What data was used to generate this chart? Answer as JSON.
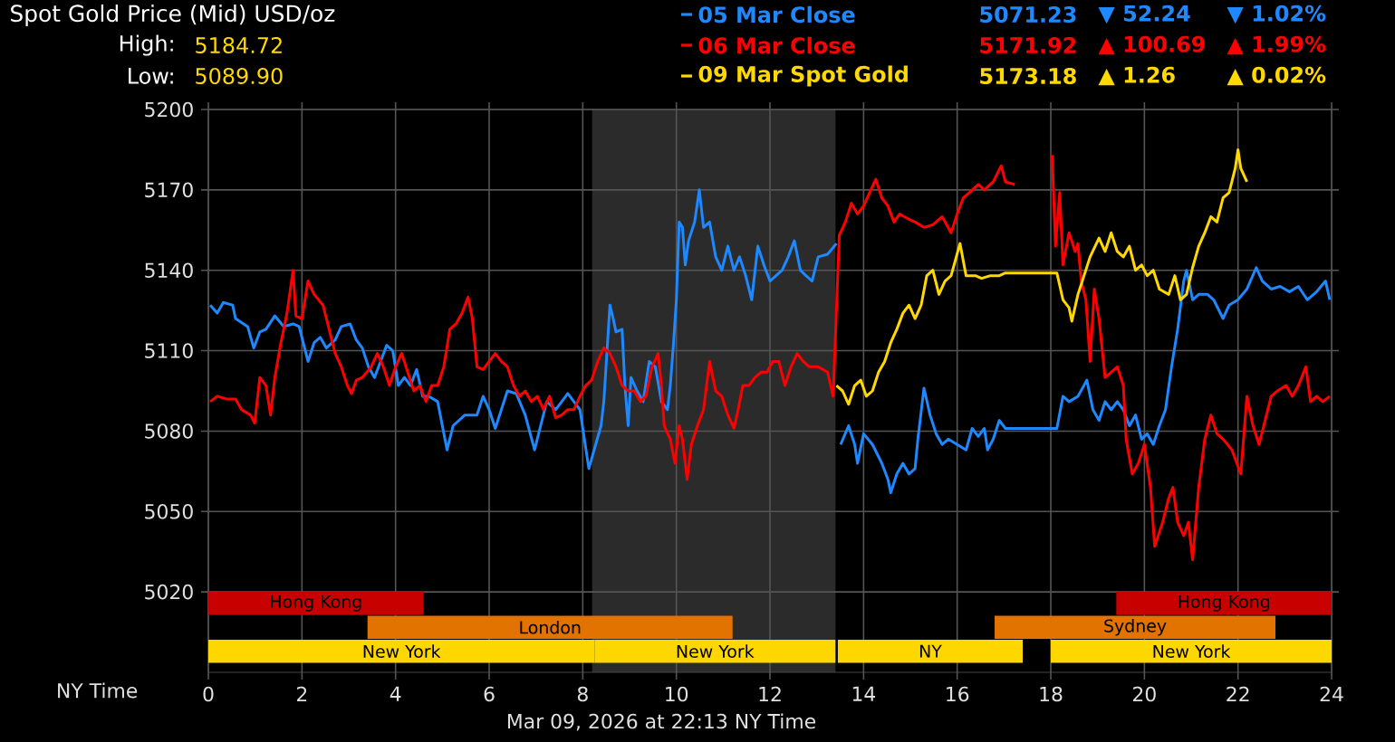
{
  "chart_data": {
    "type": "line",
    "title": "Spot Gold Price (Mid) USD/oz",
    "xlabel": "NY Time",
    "xlim": [
      0,
      24
    ],
    "ylim": [
      4990,
      5200
    ],
    "xticks": [
      0,
      2,
      4,
      6,
      8,
      10,
      12,
      14,
      16,
      18,
      20,
      22,
      24
    ],
    "yticks": [
      5020,
      5050,
      5080,
      5110,
      5140,
      5170,
      5200
    ],
    "grid": true,
    "legend": "top right",
    "series": [
      {
        "name": "05 Mar Close",
        "color": "#1e88ff",
        "x": [
          0.04,
          0.19,
          0.32,
          0.52,
          0.58,
          0.84,
          0.97,
          1.1,
          1.23,
          1.42,
          1.61,
          1.81,
          1.94,
          2.13,
          2.26,
          2.39,
          2.52,
          2.71,
          2.84,
          3.03,
          3.16,
          3.29,
          3.42,
          3.55,
          3.68,
          3.81,
          3.94,
          4.06,
          4.19,
          4.32,
          4.45,
          4.58,
          4.71,
          4.9,
          5.1,
          5.23,
          5.48,
          5.74,
          5.87,
          6.0,
          6.13,
          6.26,
          6.39,
          6.58,
          6.77,
          6.97,
          7.1,
          7.23,
          7.42,
          7.55,
          7.68,
          7.81,
          7.94,
          8.13,
          8.26,
          8.39,
          8.45,
          8.58,
          8.65,
          8.71,
          8.84,
          8.9,
          8.97,
          9.03,
          9.16,
          9.29,
          9.42,
          9.55,
          9.68,
          9.81,
          9.87,
          9.94,
          10.0,
          10.06,
          10.13,
          10.19,
          10.26,
          10.39,
          10.49,
          10.58,
          10.71,
          10.84,
          10.97,
          11.1,
          11.23,
          11.35,
          11.48,
          11.61,
          11.74,
          11.87,
          12.0,
          12.13,
          12.26,
          12.39,
          12.52,
          12.65,
          12.77,
          12.9,
          13.03,
          13.23,
          13.42,
          13.46,
          13.51,
          13.68,
          13.81,
          13.87,
          14.0,
          14.19,
          14.39,
          14.52,
          14.58,
          14.71,
          14.84,
          14.97,
          15.1,
          15.16,
          15.29,
          15.42,
          15.55,
          15.68,
          15.81,
          16.0,
          16.19,
          16.32,
          16.45,
          16.58,
          16.65,
          16.77,
          16.9,
          17.03,
          18.13,
          18.26,
          18.39,
          18.58,
          18.77,
          18.9,
          19.03,
          19.16,
          19.29,
          19.42,
          19.55,
          19.68,
          19.81,
          19.94,
          20.06,
          20.19,
          20.32,
          20.45,
          20.58,
          20.71,
          20.84,
          20.9,
          21.03,
          21.16,
          21.35,
          21.48,
          21.68,
          21.81,
          22.0,
          22.19,
          22.39,
          22.52,
          22.71,
          22.9,
          23.1,
          23.29,
          23.48,
          23.68,
          23.87,
          23.96
        ],
        "values": [
          5127,
          5124,
          5128,
          5127,
          5122,
          5119,
          5111,
          5117,
          5118,
          5123,
          5119,
          5120,
          5119,
          5106,
          5113,
          5115,
          5111,
          5114,
          5119,
          5120,
          5114,
          5111,
          5104,
          5100,
          5106,
          5112,
          5110,
          5097,
          5100,
          5097,
          5103,
          5093,
          5093,
          5091,
          5073,
          5082,
          5086,
          5086,
          5093,
          5088,
          5081,
          5088,
          5095,
          5094,
          5086,
          5073,
          5082,
          5091,
          5088,
          5091,
          5094,
          5091,
          5088,
          5066,
          5074,
          5082,
          5091,
          5127,
          5122,
          5117,
          5118,
          5097,
          5082,
          5100,
          5095,
          5091,
          5106,
          5104,
          5091,
          5088,
          5097,
          5113,
          5129,
          5158,
          5156,
          5142,
          5151,
          5158,
          5170,
          5156,
          5158,
          5145,
          5140,
          5149,
          5140,
          5145,
          5138,
          5129,
          5149,
          5142,
          5136,
          5138,
          5140,
          5145,
          5151,
          5140,
          5138,
          5136,
          5145,
          5146,
          5150,
          null,
          5075,
          5082,
          5075,
          5068,
          5079,
          5075,
          5068,
          5062,
          5057,
          5064,
          5068,
          5064,
          5066,
          5077,
          5096,
          5086,
          5079,
          5075,
          5077,
          5075,
          5073,
          5081,
          5078,
          5081,
          5073,
          5077,
          5084,
          5081,
          5081,
          5093,
          5091,
          5093,
          5099,
          5088,
          5084,
          5091,
          5088,
          5091,
          5088,
          5082,
          5086,
          5077,
          5079,
          5075,
          5082,
          5088,
          5104,
          5118,
          5136,
          5140,
          5129,
          5131,
          5131,
          5129,
          5122,
          5127,
          5129,
          5133,
          5141,
          5136,
          5133,
          5134,
          5132,
          5134,
          5129,
          5132,
          5136,
          5129
        ]
      },
      {
        "name": "06 Mar Close",
        "color": "#ff0000",
        "x": [
          0.04,
          0.19,
          0.39,
          0.58,
          0.71,
          0.9,
          0.99,
          1.1,
          1.23,
          1.33,
          1.42,
          1.55,
          1.68,
          1.81,
          1.87,
          2.0,
          2.13,
          2.26,
          2.45,
          2.58,
          2.71,
          2.84,
          2.97,
          3.06,
          3.16,
          3.29,
          3.48,
          3.61,
          3.74,
          3.87,
          4.0,
          4.13,
          4.26,
          4.39,
          4.52,
          4.65,
          4.77,
          4.9,
          5.03,
          5.16,
          5.29,
          5.42,
          5.55,
          5.64,
          5.74,
          5.87,
          6.0,
          6.13,
          6.26,
          6.39,
          6.52,
          6.65,
          6.77,
          6.9,
          7.03,
          7.16,
          7.29,
          7.42,
          7.55,
          7.68,
          7.81,
          7.94,
          8.06,
          8.19,
          8.32,
          8.45,
          8.58,
          8.71,
          8.84,
          8.97,
          9.1,
          9.23,
          9.35,
          9.48,
          9.61,
          9.68,
          9.74,
          9.87,
          9.97,
          10.06,
          10.13,
          10.23,
          10.32,
          10.45,
          10.58,
          10.71,
          10.84,
          10.97,
          11.1,
          11.23,
          11.32,
          11.42,
          11.55,
          11.68,
          11.81,
          11.94,
          12.06,
          12.19,
          12.32,
          12.45,
          12.58,
          12.71,
          12.84,
          13.03,
          13.23,
          13.35,
          13.48,
          13.61,
          13.74,
          13.87,
          14.0,
          14.13,
          14.26,
          14.39,
          14.52,
          14.65,
          14.77,
          14.97,
          15.1,
          15.29,
          15.48,
          15.68,
          15.87,
          16.0,
          16.13,
          16.26,
          16.45,
          16.58,
          16.77,
          16.94,
          17.03,
          17.23,
          17.6,
          18.03,
          18.1,
          18.19,
          18.26,
          18.39,
          18.52,
          18.58,
          18.65,
          18.75,
          18.84,
          18.93,
          19.03,
          19.16,
          19.29,
          19.42,
          19.55,
          19.61,
          19.74,
          19.87,
          20.0,
          20.13,
          20.22,
          20.39,
          20.52,
          20.61,
          20.71,
          20.84,
          20.94,
          21.03,
          21.16,
          21.29,
          21.42,
          21.55,
          21.68,
          21.87,
          22.06,
          22.19,
          22.32,
          22.45,
          22.58,
          22.71,
          22.84,
          23.03,
          23.16,
          23.29,
          23.45,
          23.55,
          23.68,
          23.81,
          23.96
        ],
        "values": [
          5091,
          5093,
          5092,
          5092,
          5088,
          5086,
          5083,
          5100,
          5097,
          5086,
          5100,
          5113,
          5124,
          5140,
          5123,
          5122,
          5136,
          5131,
          5127,
          5118,
          5109,
          5104,
          5097,
          5094,
          5099,
          5100,
          5104,
          5109,
          5104,
          5097,
          5104,
          5109,
          5102,
          5095,
          5097,
          5091,
          5097,
          5097,
          5104,
          5118,
          5120,
          5124,
          5130,
          5122,
          5104,
          5103,
          5106,
          5109,
          5106,
          5104,
          5097,
          5093,
          5095,
          5091,
          5093,
          5088,
          5093,
          5085,
          5086,
          5088,
          5088,
          5093,
          5097,
          5099,
          5106,
          5111,
          5109,
          5104,
          5097,
          5095,
          5095,
          5091,
          5093,
          5104,
          5109,
          5097,
          5082,
          5077,
          5068,
          5082,
          5077,
          5062,
          5075,
          5082,
          5088,
          5106,
          5095,
          5093,
          5086,
          5081,
          5088,
          5097,
          5097,
          5100,
          5102,
          5102,
          5106,
          5106,
          5097,
          5104,
          5109,
          5106,
          5104,
          5104,
          5102,
          5093,
          5153,
          5158,
          5165,
          5161,
          5164,
          5169,
          5174,
          5167,
          5164,
          5158,
          5161,
          5159,
          5158,
          5156,
          5157,
          5160,
          5154,
          5161,
          5167,
          5169,
          5172,
          5170,
          5173,
          5179,
          5173,
          5172,
          null,
          5183,
          5149,
          5169,
          5142,
          5154,
          5147,
          5150,
          5136,
          5129,
          5106,
          5133,
          5122,
          5100,
          5102,
          5104,
          5097,
          5077,
          5064,
          5068,
          5075,
          5059,
          5037,
          5046,
          5055,
          5059,
          5046,
          5041,
          5046,
          5032,
          5059,
          5077,
          5086,
          5079,
          5077,
          5073,
          5064,
          5093,
          5082,
          5075,
          5084,
          5093,
          5095,
          5097,
          5093,
          5097,
          5104,
          5091,
          5093,
          5091,
          5093
        ]
      },
      {
        "name": "09 Mar Spot Gold",
        "color": "#ffd800",
        "x": [
          13.42,
          13.55,
          13.68,
          13.81,
          13.94,
          14.06,
          14.19,
          14.32,
          14.45,
          14.58,
          14.71,
          14.84,
          14.97,
          15.1,
          15.23,
          15.35,
          15.48,
          15.61,
          15.74,
          15.87,
          16.06,
          16.19,
          16.39,
          16.52,
          16.71,
          16.9,
          17.03,
          18.13,
          18.26,
          18.39,
          18.45,
          18.58,
          18.71,
          18.84,
          19.03,
          19.16,
          19.29,
          19.42,
          19.55,
          19.68,
          19.81,
          19.94,
          20.06,
          20.19,
          20.32,
          20.52,
          20.65,
          20.77,
          20.9,
          21.03,
          21.16,
          21.29,
          21.42,
          21.55,
          21.68,
          21.81,
          21.94,
          22.0,
          22.06,
          22.19
        ],
        "values": [
          5097,
          5095,
          5090,
          5097,
          5099,
          5093,
          5095,
          5102,
          5106,
          5113,
          5118,
          5124,
          5127,
          5122,
          5127,
          5138,
          5140,
          5131,
          5136,
          5138,
          5150,
          5138,
          5138,
          5137,
          5138,
          5138,
          5139,
          5139,
          5129,
          5126,
          5121,
          5131,
          5138,
          5145,
          5152,
          5147,
          5154,
          5147,
          5145,
          5149,
          5140,
          5142,
          5138,
          5140,
          5133,
          5131,
          5138,
          5129,
          5131,
          5141,
          5149,
          5154,
          5160,
          5158,
          5167,
          5169,
          5178,
          5185,
          5178,
          5173
        ]
      }
    ],
    "bands": [
      {
        "axis": "x",
        "from": 8.2,
        "to": 13.4,
        "color": "#2b2b2b"
      },
      {
        "axis": "x",
        "from": 0,
        "to": 4.6,
        "label": "Hong Kong",
        "color": "#c80000"
      },
      {
        "axis": "x",
        "from": 19.4,
        "to": 24,
        "label": "Hong Kong",
        "color": "#c80000"
      },
      {
        "axis": "x",
        "from": 3.4,
        "to": 11.2,
        "label": "London",
        "color": "#e27300"
      },
      {
        "axis": "x",
        "from": 16.8,
        "to": 22.8,
        "label": "Sydney",
        "color": "#e27300"
      },
      {
        "axis": "x",
        "from": 0,
        "to": 8.25,
        "label": "New York",
        "color": "#ffd700"
      },
      {
        "axis": "x",
        "from": 8.25,
        "to": 13.4,
        "label": "New York",
        "color": "#ffd700"
      },
      {
        "axis": "x",
        "from": 13.45,
        "to": 17.4,
        "label": "NY",
        "color": "#ffd700"
      },
      {
        "axis": "x",
        "from": 18,
        "to": 24,
        "label": "New York",
        "color": "#ffd700"
      }
    ],
    "annotations": [
      "High:",
      "5184.72",
      "Low:",
      "5089.90",
      "5071.23",
      "▼ 52.24",
      "▼ 1.02%",
      "5171.92",
      "▲ 100.69",
      "▲ 1.99%",
      "5173.18",
      "▲ 1.26",
      "▲ 0.02%",
      "Mar 09, 2026 at 22:13 NY Time"
    ]
  }
}
